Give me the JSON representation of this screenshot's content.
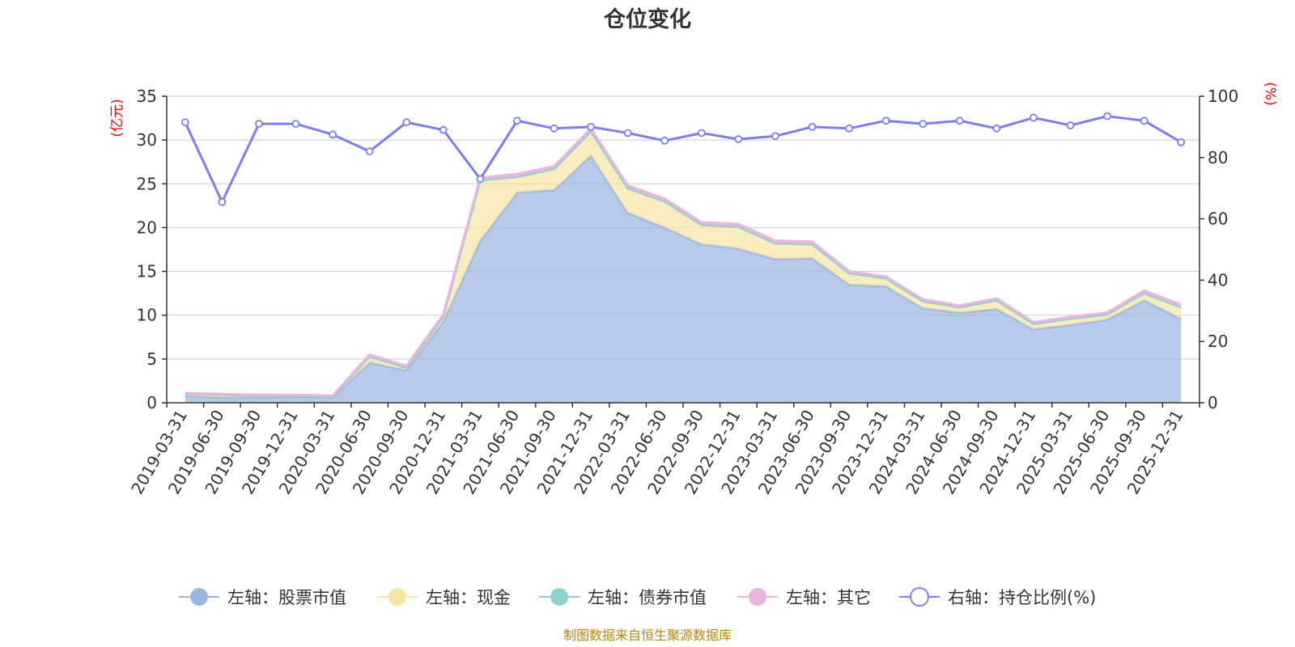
{
  "chart_data": {
    "type": "area",
    "title": "仓位变化",
    "ylabel_left": "(亿元)",
    "ylabel_right": "(%)",
    "ylim_left": [
      0,
      35
    ],
    "yticks_left": [
      0,
      5,
      10,
      15,
      20,
      25,
      30,
      35
    ],
    "ylim_right": [
      0,
      100
    ],
    "yticks_right": [
      0,
      20,
      40,
      60,
      80,
      100
    ],
    "categories": [
      "2019-03-31",
      "2019-06-30",
      "2019-09-30",
      "2019-12-31",
      "2020-03-31",
      "2020-06-30",
      "2020-09-30",
      "2020-12-31",
      "2021-03-31",
      "2021-06-30",
      "2021-09-30",
      "2021-12-31",
      "2022-03-31",
      "2022-06-30",
      "2022-09-30",
      "2022-12-31",
      "2023-03-31",
      "2023-06-30",
      "2023-09-30",
      "2023-12-31",
      "2024-03-31",
      "2024-06-30",
      "2024-09-30",
      "2024-12-31",
      "2025-03-31",
      "2025-06-30",
      "2025-09-30",
      "2025-12-31"
    ],
    "series": [
      {
        "name": "左轴：股票市值",
        "axis": "left",
        "color": "#9ab5e0",
        "values": [
          0.8,
          0.6,
          0.6,
          0.7,
          0.6,
          4.6,
          3.7,
          9.3,
          18.5,
          24.0,
          24.3,
          28.2,
          21.7,
          20.0,
          18.1,
          17.6,
          16.4,
          16.5,
          13.5,
          13.3,
          10.8,
          10.3,
          10.7,
          8.4,
          8.9,
          9.5,
          11.7,
          9.6
        ]
      },
      {
        "name": "左轴：现金",
        "axis": "left",
        "color": "#f7e6a6",
        "values": [
          0.2,
          0.3,
          0.2,
          0.1,
          0.1,
          0.7,
          0.3,
          0.6,
          6.9,
          1.8,
          2.4,
          2.8,
          2.8,
          3.0,
          2.2,
          2.5,
          1.8,
          1.6,
          1.3,
          0.9,
          0.8,
          0.6,
          1.0,
          0.6,
          0.7,
          0.6,
          0.8,
          1.3
        ]
      },
      {
        "name": "左轴：债券市值",
        "axis": "left",
        "color": "#8fd1d1",
        "values": [
          0,
          0,
          0,
          0,
          0,
          0,
          0,
          0,
          0,
          0,
          0,
          0,
          0,
          0,
          0,
          0,
          0,
          0,
          0,
          0,
          0,
          0,
          0,
          0,
          0,
          0,
          0,
          0
        ]
      },
      {
        "name": "左轴：其它",
        "axis": "left",
        "color": "#e8b5dc",
        "values": [
          0.1,
          0.1,
          0.1,
          0.1,
          0.1,
          0.2,
          0.2,
          0.2,
          0.3,
          0.3,
          0.3,
          0.3,
          0.3,
          0.3,
          0.3,
          0.3,
          0.3,
          0.3,
          0.2,
          0.2,
          0.2,
          0.2,
          0.2,
          0.2,
          0.2,
          0.2,
          0.3,
          0.3
        ]
      },
      {
        "name": "右轴：持仓比例(%)",
        "axis": "right",
        "color": "#7b7ff0",
        "values": [
          91.5,
          65.5,
          91.0,
          91.0,
          87.5,
          82.0,
          91.5,
          89.0,
          73.0,
          92.0,
          89.5,
          90.0,
          88.0,
          85.5,
          88.0,
          86.0,
          87.0,
          90.0,
          89.5,
          92.0,
          91.0,
          92.0,
          89.5,
          93.0,
          90.5,
          93.5,
          92.0,
          85.0
        ]
      }
    ]
  },
  "footer": "制图数据来自恒生聚源数据库"
}
